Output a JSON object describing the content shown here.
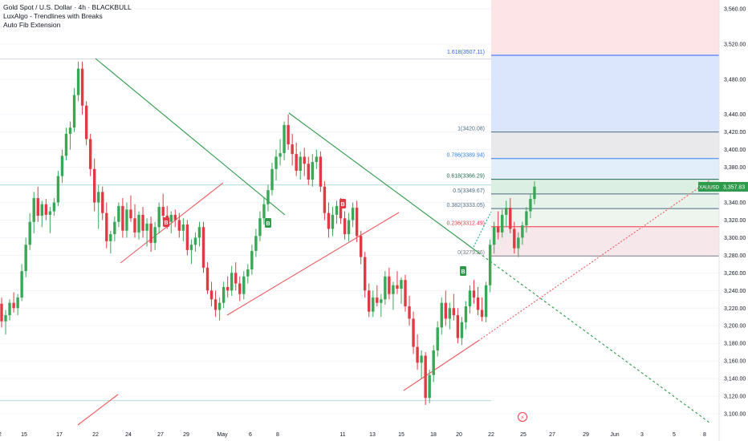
{
  "header": {
    "title": "Gold Spot / U.S. Dollar · 4h · BLACKBULL",
    "indicator_1": "LuxAlgo - Trendlines with Breaks",
    "indicator_2": "Auto Fib Extension"
  },
  "price_badge": {
    "symbol": "XAUUSD",
    "price": "3,357.83",
    "value": 3357.83
  },
  "chart_data": {
    "type": "candlestick",
    "symbol": "XAUUSD",
    "timeframe": "4h",
    "ylim": [
      3080,
      3570
    ],
    "y_ticks": [
      3100,
      3120,
      3140,
      3160,
      3180,
      3200,
      3220,
      3240,
      3260,
      3280,
      3300,
      3320,
      3340,
      3360,
      3380,
      3400,
      3420,
      3440,
      3480,
      3520,
      3560
    ],
    "y_tick_labels": [
      "3,100.00",
      "3,120.00",
      "3,140.00",
      "3,160.00",
      "3,180.00",
      "3,200.00",
      "3,220.00",
      "3,240.00",
      "3,260.00",
      "3,280.00",
      "3,300.00",
      "3,320.00",
      "3,340.00",
      "3,360.00",
      "3,380.00",
      "3,400.00",
      "3,420.00",
      "3,440.00",
      "3,480.00",
      "3,520.00",
      "3,560.00"
    ],
    "x_tick_labels": [
      "2",
      "15",
      "17",
      "22",
      "24",
      "27",
      "29",
      "May",
      "6",
      "8",
      "11",
      "13",
      "15",
      "18",
      "20",
      "22",
      "25",
      "27",
      "29",
      "Jun",
      "3",
      "5",
      "8"
    ],
    "candles": [
      [
        3225,
        3232,
        3198,
        3205
      ],
      [
        3205,
        3218,
        3190,
        3212
      ],
      [
        3212,
        3230,
        3206,
        3226
      ],
      [
        3226,
        3238,
        3215,
        3220
      ],
      [
        3220,
        3236,
        3212,
        3232
      ],
      [
        3232,
        3270,
        3228,
        3262
      ],
      [
        3262,
        3300,
        3255,
        3292
      ],
      [
        3292,
        3328,
        3286,
        3318
      ],
      [
        3318,
        3352,
        3305,
        3345
      ],
      [
        3345,
        3358,
        3318,
        3325
      ],
      [
        3325,
        3342,
        3312,
        3338
      ],
      [
        3338,
        3344,
        3320,
        3326
      ],
      [
        3326,
        3335,
        3305,
        3330
      ],
      [
        3330,
        3345,
        3325,
        3340
      ],
      [
        3340,
        3376,
        3336,
        3370
      ],
      [
        3370,
        3400,
        3362,
        3393
      ],
      [
        3393,
        3425,
        3388,
        3418
      ],
      [
        3418,
        3432,
        3400,
        3425
      ],
      [
        3425,
        3470,
        3420,
        3462
      ],
      [
        3462,
        3500,
        3455,
        3492
      ],
      [
        3492,
        3500,
        3440,
        3450
      ],
      [
        3450,
        3455,
        3405,
        3412
      ],
      [
        3412,
        3418,
        3370,
        3378
      ],
      [
        3378,
        3390,
        3330,
        3340
      ],
      [
        3340,
        3360,
        3310,
        3352
      ],
      [
        3352,
        3358,
        3320,
        3328
      ],
      [
        3328,
        3340,
        3288,
        3296
      ],
      [
        3296,
        3308,
        3282,
        3304
      ],
      [
        3304,
        3324,
        3296,
        3318
      ],
      [
        3318,
        3340,
        3312,
        3336
      ],
      [
        3336,
        3345,
        3300,
        3308
      ],
      [
        3308,
        3340,
        3300,
        3332
      ],
      [
        3332,
        3348,
        3318,
        3322
      ],
      [
        3322,
        3338,
        3300,
        3306
      ],
      [
        3306,
        3330,
        3298,
        3326
      ],
      [
        3326,
        3335,
        3300,
        3308
      ],
      [
        3308,
        3322,
        3290,
        3316
      ],
      [
        3316,
        3324,
        3284,
        3294
      ],
      [
        3294,
        3318,
        3286,
        3312
      ],
      [
        3312,
        3340,
        3305,
        3335
      ],
      [
        3335,
        3350,
        3320,
        3325
      ],
      [
        3325,
        3336,
        3310,
        3318
      ],
      [
        3318,
        3330,
        3305,
        3326
      ],
      [
        3326,
        3332,
        3312,
        3320
      ],
      [
        3320,
        3328,
        3300,
        3308
      ],
      [
        3308,
        3322,
        3296,
        3315
      ],
      [
        3315,
        3320,
        3280,
        3286
      ],
      [
        3286,
        3298,
        3270,
        3292
      ],
      [
        3292,
        3306,
        3284,
        3300
      ],
      [
        3300,
        3318,
        3290,
        3312
      ],
      [
        3312,
        3318,
        3260,
        3266
      ],
      [
        3266,
        3272,
        3236,
        3240
      ],
      [
        3240,
        3250,
        3222,
        3230
      ],
      [
        3230,
        3240,
        3210,
        3218
      ],
      [
        3218,
        3232,
        3206,
        3226
      ],
      [
        3226,
        3250,
        3220,
        3244
      ],
      [
        3244,
        3256,
        3232,
        3240
      ],
      [
        3240,
        3268,
        3234,
        3260
      ],
      [
        3260,
        3272,
        3240,
        3248
      ],
      [
        3248,
        3256,
        3228,
        3236
      ],
      [
        3236,
        3262,
        3230,
        3256
      ],
      [
        3256,
        3270,
        3248,
        3264
      ],
      [
        3264,
        3292,
        3258,
        3285
      ],
      [
        3285,
        3310,
        3278,
        3302
      ],
      [
        3302,
        3330,
        3296,
        3322
      ],
      [
        3322,
        3346,
        3315,
        3338
      ],
      [
        3338,
        3360,
        3330,
        3354
      ],
      [
        3354,
        3385,
        3348,
        3378
      ],
      [
        3378,
        3400,
        3365,
        3392
      ],
      [
        3392,
        3412,
        3382,
        3396
      ],
      [
        3396,
        3432,
        3388,
        3428
      ],
      [
        3428,
        3440,
        3400,
        3406
      ],
      [
        3406,
        3418,
        3382,
        3395
      ],
      [
        3395,
        3408,
        3370,
        3376
      ],
      [
        3376,
        3398,
        3366,
        3392
      ],
      [
        3392,
        3402,
        3370,
        3384
      ],
      [
        3384,
        3392,
        3360,
        3366
      ],
      [
        3366,
        3395,
        3358,
        3386
      ],
      [
        3386,
        3400,
        3378,
        3392
      ],
      [
        3392,
        3398,
        3352,
        3358
      ],
      [
        3358,
        3364,
        3320,
        3328
      ],
      [
        3328,
        3340,
        3300,
        3310
      ],
      [
        3310,
        3335,
        3302,
        3326
      ],
      [
        3326,
        3342,
        3316,
        3336
      ],
      [
        3336,
        3345,
        3316,
        3322
      ],
      [
        3322,
        3330,
        3298,
        3304
      ],
      [
        3304,
        3328,
        3296,
        3320
      ],
      [
        3320,
        3340,
        3312,
        3334
      ],
      [
        3334,
        3342,
        3295,
        3302
      ],
      [
        3302,
        3308,
        3270,
        3278
      ],
      [
        3278,
        3284,
        3232,
        3240
      ],
      [
        3240,
        3248,
        3210,
        3216
      ],
      [
        3216,
        3240,
        3210,
        3232
      ],
      [
        3232,
        3246,
        3222,
        3226
      ],
      [
        3226,
        3236,
        3210,
        3230
      ],
      [
        3230,
        3262,
        3224,
        3256
      ],
      [
        3256,
        3266,
        3230,
        3236
      ],
      [
        3236,
        3250,
        3218,
        3246
      ],
      [
        3246,
        3262,
        3236,
        3242
      ],
      [
        3242,
        3255,
        3225,
        3252
      ],
      [
        3252,
        3258,
        3216,
        3222
      ],
      [
        3222,
        3234,
        3200,
        3208
      ],
      [
        3208,
        3216,
        3168,
        3176
      ],
      [
        3176,
        3190,
        3150,
        3158
      ],
      [
        3158,
        3172,
        3140,
        3166
      ],
      [
        3166,
        3170,
        3110,
        3118
      ],
      [
        3118,
        3150,
        3112,
        3144
      ],
      [
        3144,
        3178,
        3136,
        3172
      ],
      [
        3172,
        3205,
        3165,
        3198
      ],
      [
        3198,
        3232,
        3190,
        3226
      ],
      [
        3226,
        3240,
        3200,
        3208
      ],
      [
        3208,
        3226,
        3196,
        3220
      ],
      [
        3220,
        3236,
        3206,
        3212
      ],
      [
        3212,
        3220,
        3180,
        3186
      ],
      [
        3186,
        3210,
        3178,
        3204
      ],
      [
        3204,
        3228,
        3196,
        3222
      ],
      [
        3222,
        3246,
        3214,
        3240
      ],
      [
        3240,
        3252,
        3225,
        3232
      ],
      [
        3232,
        3244,
        3212,
        3218
      ],
      [
        3218,
        3232,
        3205,
        3210
      ],
      [
        3210,
        3250,
        3204,
        3246
      ],
      [
        3246,
        3298,
        3238,
        3292
      ],
      [
        3292,
        3318,
        3282,
        3312
      ],
      [
        3312,
        3330,
        3298,
        3306
      ],
      [
        3306,
        3332,
        3300,
        3326
      ],
      [
        3326,
        3342,
        3312,
        3334
      ],
      [
        3334,
        3345,
        3305,
        3310
      ],
      [
        3310,
        3318,
        3282,
        3288
      ],
      [
        3288,
        3306,
        3278,
        3300
      ],
      [
        3300,
        3318,
        3292,
        3314
      ],
      [
        3314,
        3335,
        3306,
        3330
      ],
      [
        3330,
        3350,
        3322,
        3344
      ],
      [
        3344,
        3364,
        3338,
        3358
      ]
    ],
    "fib_levels": [
      {
        "label": "0.236(3312.49)",
        "value": 3312.49,
        "color": "#f23645"
      },
      {
        "label": "0.382(3333.05)",
        "value": 3333.05,
        "color": "#4d6a80"
      },
      {
        "label": "0.5(3349.67)",
        "value": 3349.67,
        "color": "#4d6a80"
      },
      {
        "label": "0.618(3366.29)",
        "value": 3366.29,
        "color": "#1e6b4f"
      },
      {
        "label": "0.786(3389.94)",
        "value": 3389.94,
        "color": "#2f80ed"
      },
      {
        "label": "1(3420.08)",
        "value": 3420.08,
        "color": "#4d6a80"
      },
      {
        "label": "1.618(3507.11)",
        "value": 3507.11,
        "color": "#2962ff"
      },
      {
        "label": "0(3279.26)",
        "value": 3279.26,
        "color": "#787b86"
      }
    ],
    "break_labels": [
      {
        "text": "B",
        "type": "sell"
      },
      {
        "text": "B",
        "type": "buy"
      },
      {
        "text": "B",
        "type": "sell"
      },
      {
        "text": "B",
        "type": "buy"
      }
    ]
  },
  "colors": {
    "up": "#26a69a",
    "up_fill": "#3aa757",
    "down": "#e03a44",
    "trend_down": "#2e9a4b",
    "trend_up": "#f05a60",
    "grid": "#f0f3fa",
    "price_badge": "#2e9a4b"
  }
}
